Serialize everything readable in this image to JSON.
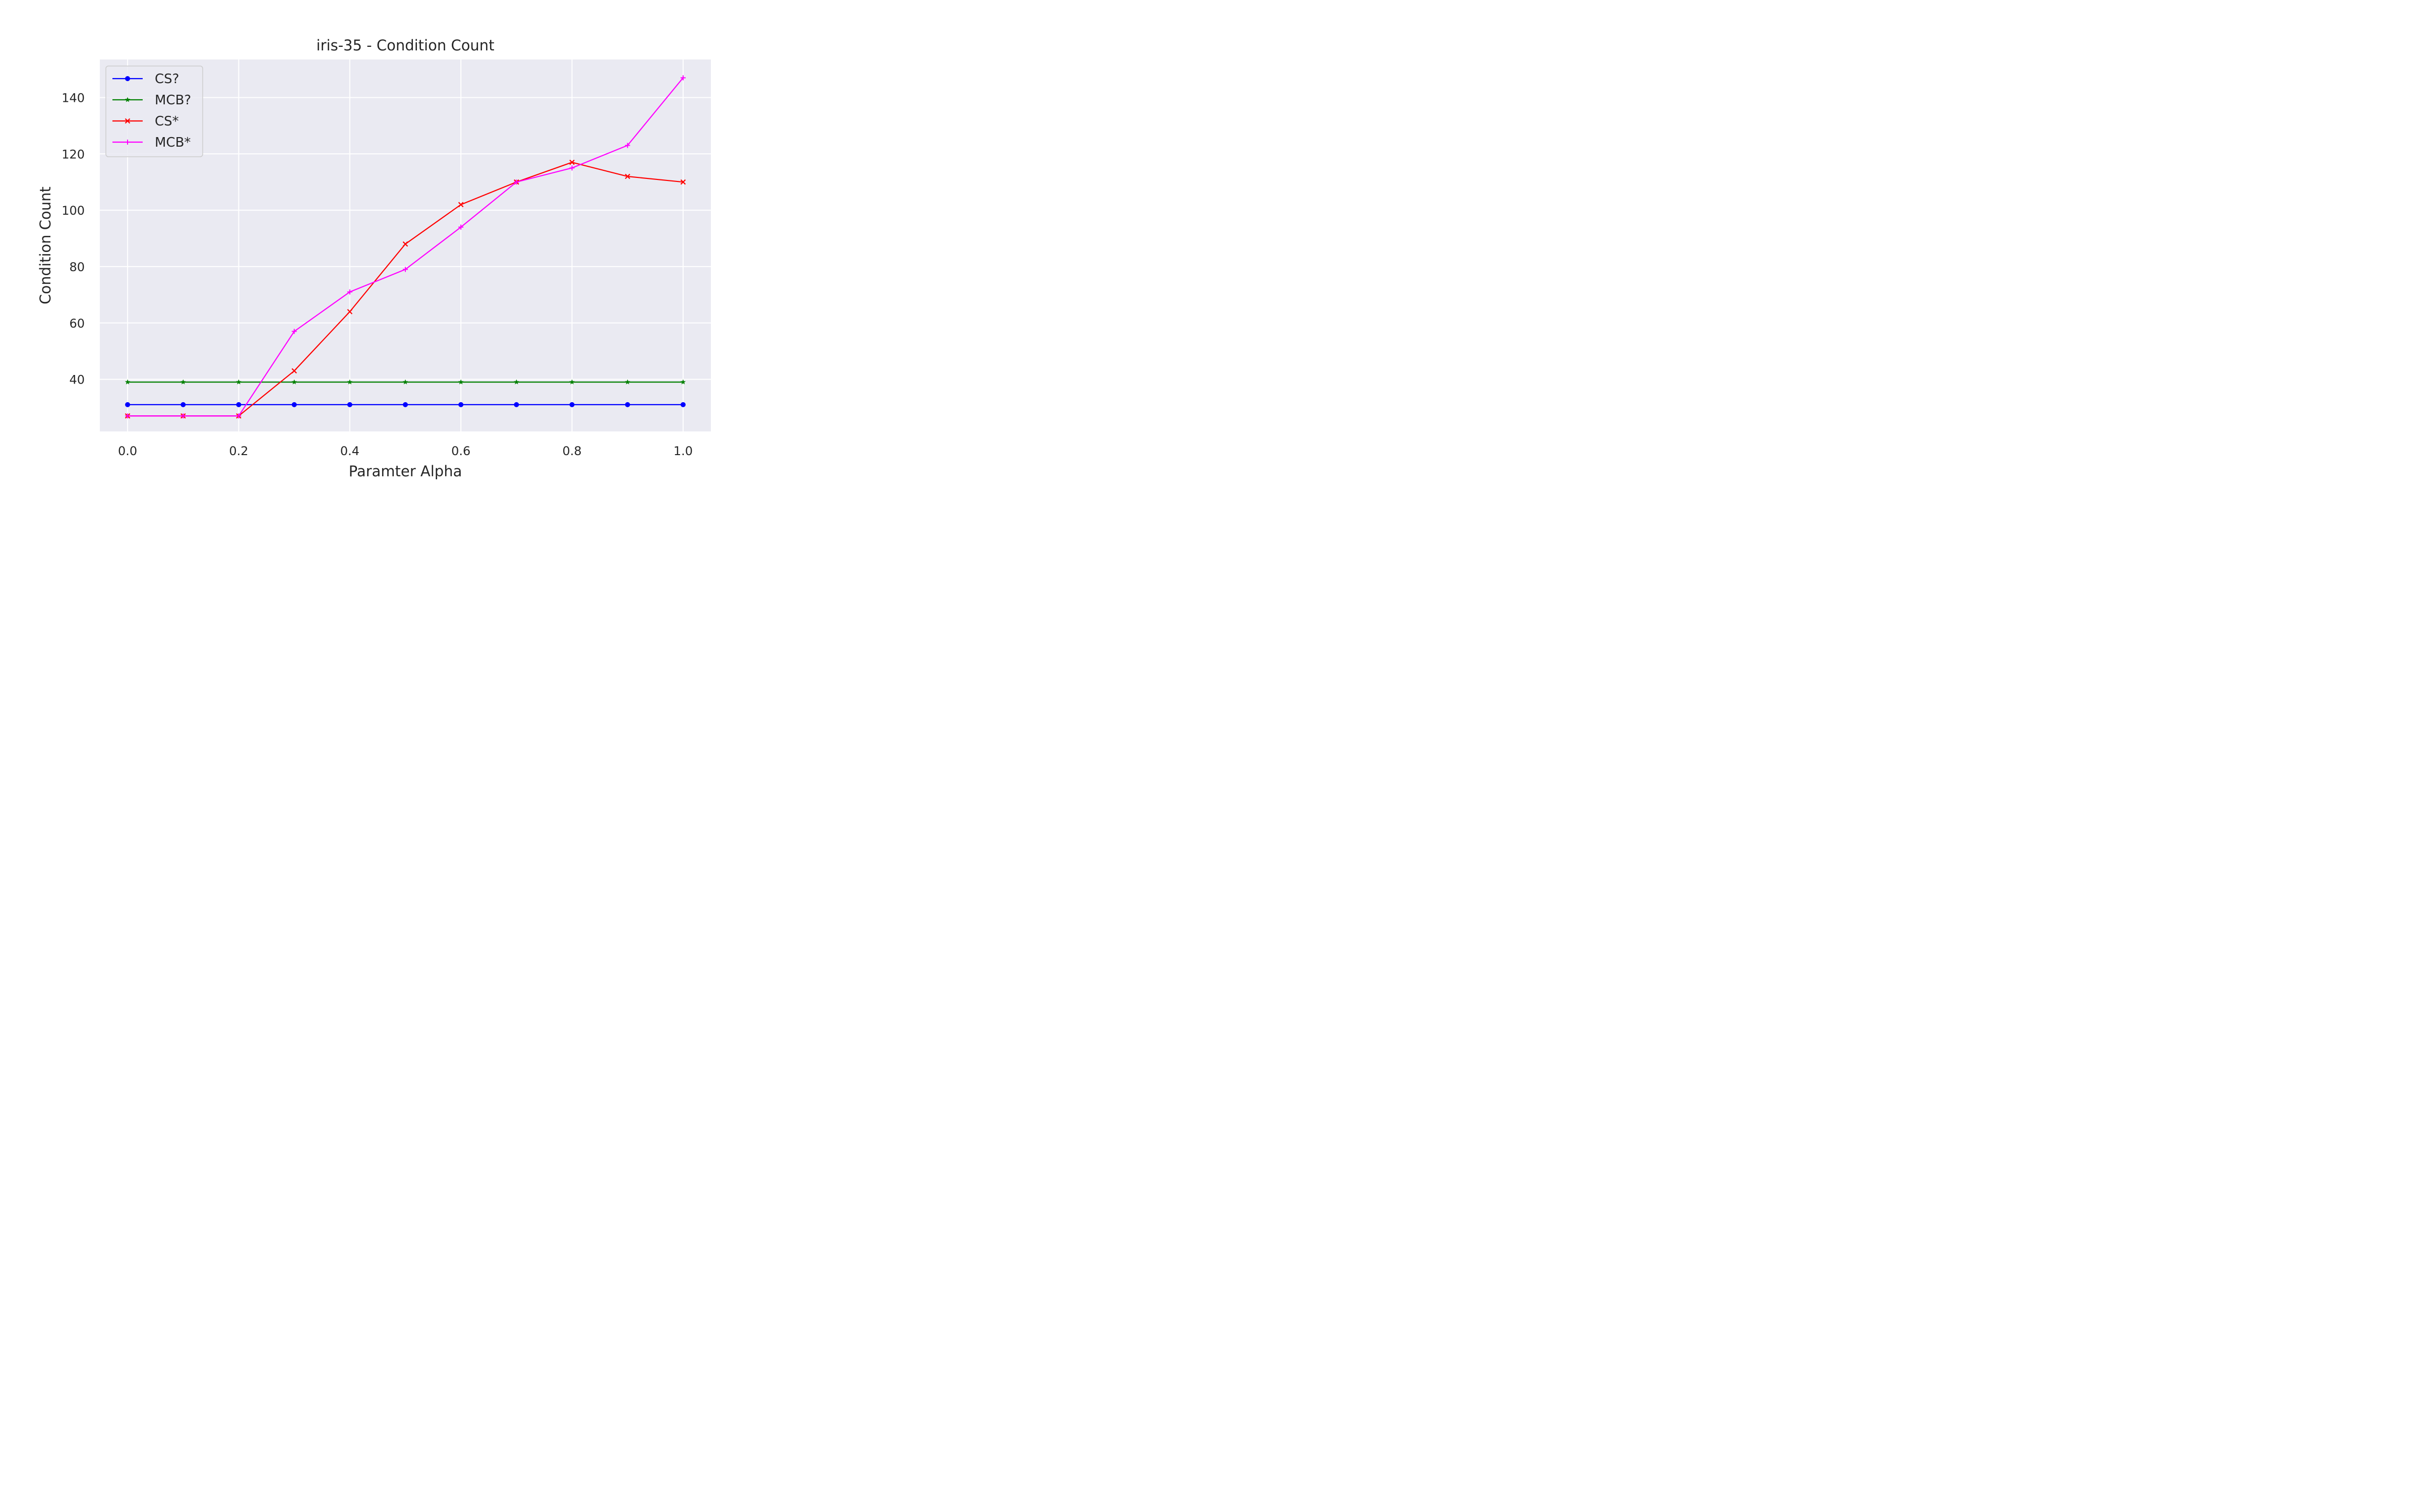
{
  "chart_data": {
    "type": "line",
    "title": "iris-35 - Condition Count",
    "xlabel": "Paramter Alpha",
    "ylabel": "Condition Count",
    "x": [
      0.0,
      0.1,
      0.2,
      0.3,
      0.4,
      0.5,
      0.6,
      0.7,
      0.8,
      0.9,
      1.0
    ],
    "xlim": [
      -0.05,
      1.05
    ],
    "ylim": [
      21.5,
      153.5
    ],
    "xticks": [
      "0.0",
      "0.2",
      "0.4",
      "0.6",
      "0.8",
      "1.0"
    ],
    "xtick_values": [
      0.0,
      0.2,
      0.4,
      0.6,
      0.8,
      1.0
    ],
    "yticks": [
      "40",
      "60",
      "80",
      "100",
      "120",
      "140"
    ],
    "ytick_values": [
      40,
      60,
      80,
      100,
      120,
      140
    ],
    "grid": true,
    "legend_position": "top-left",
    "background_color": "#eaeaf2",
    "grid_color": "#ffffff",
    "series": [
      {
        "name": "CS?",
        "color": "#0000ff",
        "marker": "circle",
        "values": [
          31,
          31,
          31,
          31,
          31,
          31,
          31,
          31,
          31,
          31,
          31
        ]
      },
      {
        "name": "MCB?",
        "color": "#008000",
        "marker": "star",
        "values": [
          39,
          39,
          39,
          39,
          39,
          39,
          39,
          39,
          39,
          39,
          39
        ]
      },
      {
        "name": "CS*",
        "color": "#ff0000",
        "marker": "x",
        "values": [
          27,
          27,
          27,
          43,
          64,
          88,
          102,
          110,
          117,
          112,
          110
        ]
      },
      {
        "name": "MCB*",
        "color": "#ff00ff",
        "marker": "plus",
        "values": [
          27,
          27,
          27,
          57,
          71,
          79,
          94,
          110,
          115,
          123,
          147
        ]
      }
    ]
  }
}
